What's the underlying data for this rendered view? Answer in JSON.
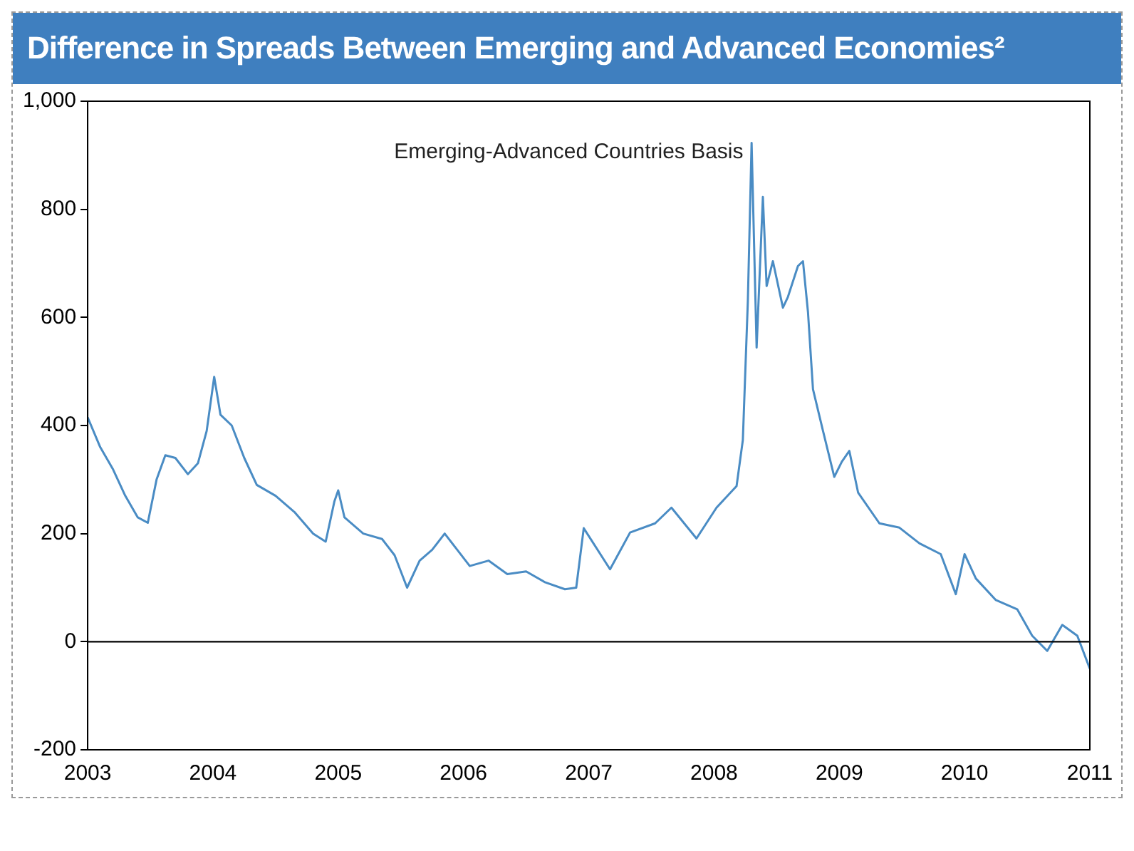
{
  "chart_data": {
    "type": "line",
    "title": "Difference in Spreads Between Emerging and Advanced Economies²",
    "annotations": [
      "Emerging-Advanced Countries Basis"
    ],
    "x": [
      2003.0,
      2003.1,
      2003.2,
      2003.3,
      2003.4,
      2003.48,
      2003.55,
      2003.62,
      2003.7,
      2003.8,
      2003.88,
      2003.95,
      2004.01,
      2004.06,
      2004.15,
      2004.25,
      2004.35,
      2004.5,
      2004.65,
      2004.8,
      2004.9,
      2004.97,
      2005.0,
      2005.05,
      2005.2,
      2005.35,
      2005.45,
      2005.55,
      2005.65,
      2005.75,
      2005.85,
      2005.95,
      2006.05,
      2006.2,
      2006.35,
      2006.5,
      2006.65,
      2006.81,
      2006.9,
      2006.96,
      2007.17,
      2007.33,
      2007.53,
      2007.66,
      2007.86,
      2008.02,
      2008.18,
      2008.23,
      2008.27,
      2008.3,
      2008.34,
      2008.39,
      2008.42,
      2008.47,
      2008.55,
      2008.59,
      2008.67,
      2008.71,
      2008.75,
      2008.79,
      2008.87,
      2008.96,
      2009.02,
      2009.08,
      2009.15,
      2009.32,
      2009.48,
      2009.64,
      2009.81,
      2009.93,
      2010.0,
      2010.09,
      2010.25,
      2010.42,
      2010.54,
      2010.66,
      2010.78,
      2010.9,
      2011.0
    ],
    "series": [
      {
        "color": "#4a8cc4",
        "values": [
          415,
          360,
          320,
          270,
          230,
          220,
          300,
          345,
          340,
          310,
          330,
          390,
          490,
          420,
          400,
          340,
          290,
          270,
          240,
          200,
          185,
          260,
          280,
          230,
          200,
          190,
          160,
          100,
          150,
          170,
          200,
          170,
          140,
          150,
          125,
          130,
          110,
          97,
          100,
          210,
          134,
          202,
          219,
          248,
          191,
          248,
          288,
          373,
          630,
          923,
          544,
          823,
          658,
          704,
          618,
          638,
          695,
          704,
          610,
          467,
          390,
          305,
          333,
          353,
          276,
          219,
          211,
          182,
          162,
          88,
          162,
          117,
          77,
          60,
          11,
          -17,
          31,
          11,
          -50
        ]
      }
    ],
    "xlim": [
      2003,
      2011
    ],
    "xticks": [
      2003,
      2004,
      2005,
      2006,
      2007,
      2008,
      2009,
      2010,
      2011
    ],
    "ylim": [
      -200,
      1000
    ],
    "yticks": [
      -200,
      0,
      200,
      400,
      600,
      800,
      {
        "value": 1000,
        "label": "1,000"
      }
    ],
    "ref_lines": [
      {
        "axis": "y",
        "value": 0,
        "color": "#000000"
      }
    ],
    "grid": false,
    "legend": false,
    "marker": "none",
    "line_style": "solid"
  }
}
